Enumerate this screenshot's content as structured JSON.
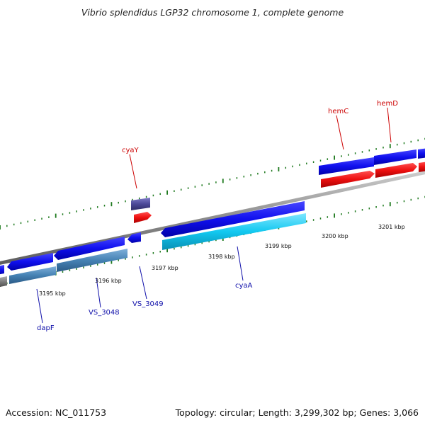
{
  "title": "Vibrio splendidus LGP32 chromosome 1, complete genome",
  "footer": {
    "accession": "Accession: NC_011753",
    "topology": "Topology: circular; Length: 3,299,302 bp; Genes: 3,066"
  },
  "colors": {
    "backbone": "#8c8c8c",
    "tick": "#1f7a1f",
    "gene_blue": "#1010ee",
    "gene_red": "#ee1010",
    "gene_cyan": "#12c8f0",
    "gene_steel": "#4682b4",
    "gene_slate": "#4b4898",
    "gene_grey": "#7a7a7a",
    "label_red": "#cc0000",
    "label_blue": "#1010aa"
  },
  "scale": {
    "labels": [
      "3195 kbp",
      "3196 kbp",
      "3197 kbp",
      "3198 kbp",
      "3199 kbp",
      "3200 kbp",
      "3201 kbp"
    ]
  },
  "genes": [
    {
      "name": "dapF",
      "color": "gene_blue"
    },
    {
      "name": "VS_3048",
      "color": "gene_blue"
    },
    {
      "name": "VS_3049",
      "color": "gene_blue"
    },
    {
      "name": "cyaA",
      "color": "gene_blue"
    },
    {
      "name": "cyaY",
      "color": "gene_slate"
    },
    {
      "name": "hemC",
      "color": "gene_blue"
    },
    {
      "name": "hemD",
      "color": "gene_blue"
    }
  ]
}
